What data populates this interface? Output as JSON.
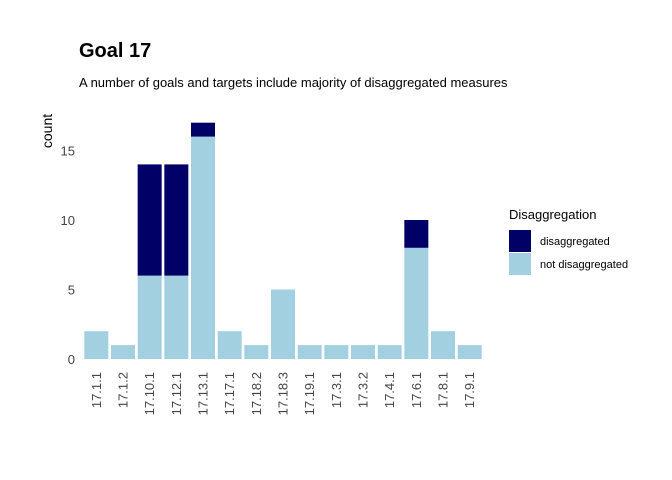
{
  "chart_data": {
    "type": "bar",
    "stacked": true,
    "title": "Goal  17",
    "subtitle": "A number of goals and targets include majority of disaggregated measures",
    "xlabel": "",
    "ylabel": "count",
    "ylim": [
      0,
      17
    ],
    "yticks": [
      0,
      5,
      10,
      15
    ],
    "grid": false,
    "legend_position": "right",
    "legend_title": "Disaggregation",
    "categories": [
      "17.1.1",
      "17.1.2",
      "17.10.1",
      "17.12.1",
      "17.13.1",
      "17.17.1",
      "17.18.2",
      "17.18.3",
      "17.19.1",
      "17.3.1",
      "17.3.2",
      "17.4.1",
      "17.6.1",
      "17.8.1",
      "17.9.1"
    ],
    "series": [
      {
        "name": "not disaggregated",
        "color": "#a3d0e1",
        "values": [
          2,
          1,
          6,
          6,
          16,
          2,
          1,
          5,
          1,
          1,
          1,
          1,
          8,
          2,
          1
        ]
      },
      {
        "name": "disaggregated",
        "color": "#000066",
        "values": [
          0,
          0,
          8,
          8,
          1,
          0,
          0,
          0,
          0,
          0,
          0,
          0,
          2,
          0,
          0
        ]
      }
    ],
    "legend_order": [
      "disaggregated",
      "not disaggregated"
    ]
  }
}
